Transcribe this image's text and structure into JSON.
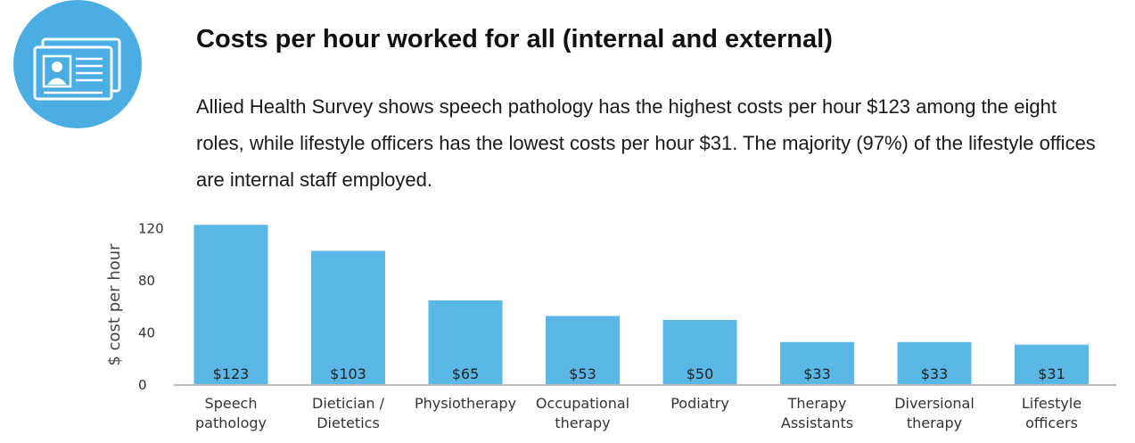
{
  "header": {
    "icon": "id-card-icon",
    "icon_color": "#4aaee3",
    "title": "Costs per hour worked for all (internal and external)",
    "summary": "Allied Health Survey shows speech pathology has the highest costs per hour $123 among the eight roles, while lifestyle officers has the lowest costs per hour $31. The majority (97%) of the lifestyle offices are internal staff employed."
  },
  "chart_data": {
    "type": "bar",
    "categories": [
      [
        "Speech",
        "pathology"
      ],
      [
        "Dietician /",
        "Dietetics"
      ],
      [
        "Physiotherapy"
      ],
      [
        "Occupational",
        "therapy"
      ],
      [
        "Podiatry"
      ],
      [
        "Therapy",
        "Assistants"
      ],
      [
        "Diversional",
        "therapy"
      ],
      [
        "Lifestyle",
        "officers"
      ]
    ],
    "values": [
      123,
      103,
      65,
      53,
      50,
      33,
      33,
      31
    ],
    "value_labels": [
      "$123",
      "$103",
      "$65",
      "$53",
      "$50",
      "$33",
      "$33",
      "$31"
    ],
    "xlabel": "",
    "ylabel": "$ cost per hour",
    "ylim": [
      0,
      130
    ],
    "yticks": [
      0,
      40,
      80,
      120
    ],
    "grid": false,
    "bar_color": "#5bb8e6",
    "axis_color": "#bbbbbb"
  }
}
